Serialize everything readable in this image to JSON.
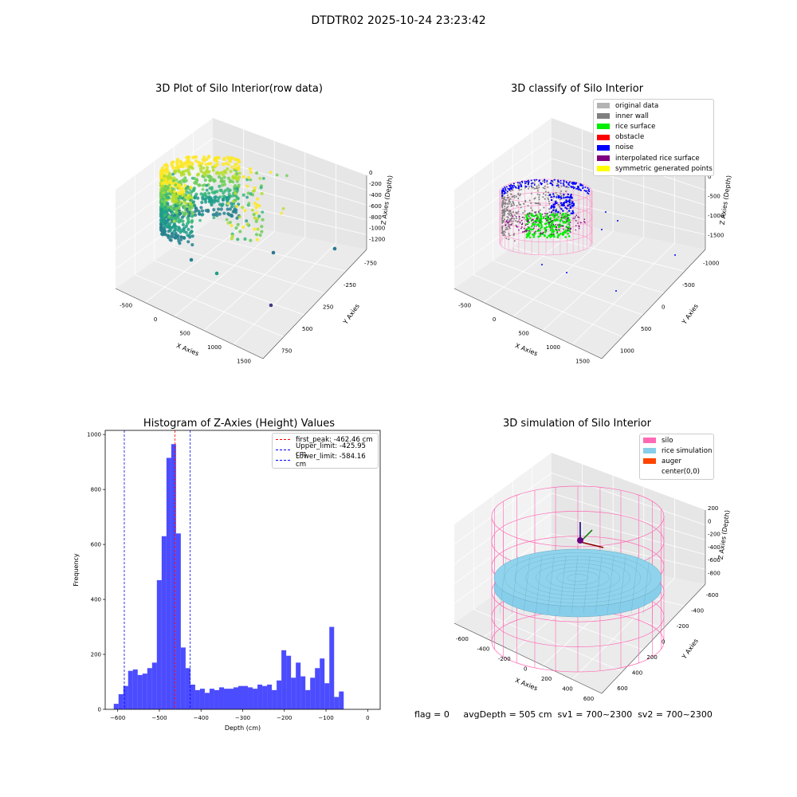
{
  "suptitle": "DTDTR02 2025-10-24 23:23:42",
  "footer": "flag = 0     avgDepth = 505 cm  sv1 = 700~2300  sv2 = 700~2300",
  "chart_data": [
    {
      "type": "scatter",
      "subtype": "3d",
      "title": "3D Plot of Silo Interior(row data)",
      "xlabel": "X Axies",
      "ylabel": "Y Axies",
      "zlabel": "Z Axies (Depth)",
      "xticks": [
        "-500",
        "0",
        "500",
        "1000",
        "1500"
      ],
      "yticks": [
        "-750",
        "-250",
        "250",
        "500",
        "750"
      ],
      "zticks": [
        "0",
        "-200",
        "-400",
        "-600",
        "-800",
        "-1000",
        "-1200"
      ],
      "colormap": "viridis (z-based)",
      "outlier_points": [
        {
          "x": 1600,
          "y": 0,
          "z": -1150
        },
        {
          "x": 900,
          "y": -600,
          "z": -1200
        },
        {
          "x": 300,
          "y": -700,
          "z": -1250
        },
        {
          "x": 1100,
          "y": -900,
          "z": -1400
        }
      ]
    },
    {
      "type": "scatter",
      "subtype": "3d",
      "title": "3D classify of Silo Interior",
      "xlabel": "X Axies",
      "ylabel": "Y Axies",
      "zlabel": "Z Axies (Depth)",
      "xticks": [
        "-500",
        "0",
        "500",
        "1000",
        "1500"
      ],
      "yticks": [
        "-1000",
        "-500",
        "0",
        "500",
        "1000"
      ],
      "zticks": [
        "0",
        "-500",
        "-1000",
        "-1500"
      ],
      "legend_position": "top-right",
      "legend": [
        {
          "label": "original data",
          "color": "#b3b3b3"
        },
        {
          "label": "inner wall",
          "color": "#808080"
        },
        {
          "label": "rice surface",
          "color": "#00ee00"
        },
        {
          "label": "obstacle",
          "color": "#ff0000"
        },
        {
          "label": "noise",
          "color": "#0000ff"
        },
        {
          "label": "interpolated rice surface",
          "color": "#800080"
        },
        {
          "label": "symmetric generated points",
          "color": "#ffff00"
        }
      ]
    },
    {
      "type": "bar",
      "subtype": "histogram",
      "title": "Histogram of Z-Axies (Height) Values",
      "xlabel": "Depth (cm)",
      "ylabel": "Frequency",
      "xlim": [
        -630,
        30
      ],
      "ylim": [
        0,
        1015
      ],
      "bin_width": 11.5,
      "bin_start": -609.5,
      "xticks": [
        -600,
        -500,
        -400,
        -300,
        -200,
        -100,
        0
      ],
      "yticks": [
        0,
        200,
        400,
        600,
        800,
        1000
      ],
      "color": "#0000ff",
      "values": [
        20,
        55,
        85,
        140,
        145,
        125,
        130,
        150,
        170,
        470,
        630,
        915,
        965,
        640,
        225,
        150,
        90,
        70,
        75,
        60,
        75,
        70,
        80,
        75,
        75,
        80,
        85,
        85,
        80,
        75,
        90,
        85,
        90,
        70,
        105,
        215,
        195,
        115,
        170,
        120,
        70,
        115,
        150,
        185,
        95,
        300,
        45,
        65
      ],
      "vlines": [
        {
          "label": "first_peak: -462.46 cm",
          "x": -462.46,
          "color": "#ff0000"
        },
        {
          "label": "Upper_limit: -425.95 cm",
          "x": -425.95,
          "color": "#0000ff"
        },
        {
          "label": "Lower_limit: -584.16 cm",
          "x": -584.16,
          "color": "#0000ff"
        }
      ],
      "legend_position": "top-right"
    },
    {
      "type": "scatter",
      "subtype": "3d",
      "title": "3D simulation of Silo Interior",
      "xlabel": "X Axies",
      "ylabel": "Y Axies",
      "zlabel": "Z Axies (Depth)",
      "xticks": [
        "-600",
        "-400",
        "-200",
        "0",
        "200",
        "400",
        "600"
      ],
      "yticks": [
        "-600",
        "-400",
        "-200",
        "0",
        "200",
        "400",
        "600"
      ],
      "zticks": [
        "200",
        "0",
        "-200",
        "-400",
        "-600",
        "-800"
      ],
      "legend_position": "top-right",
      "legend": [
        {
          "label": "silo",
          "color": "#ff69b4"
        },
        {
          "label": "rice simulation",
          "color": "#87ceeb"
        },
        {
          "label": "auger",
          "color": "#ff4500"
        },
        {
          "label": "center(0,0)",
          "color": "#ffffff"
        }
      ]
    }
  ]
}
